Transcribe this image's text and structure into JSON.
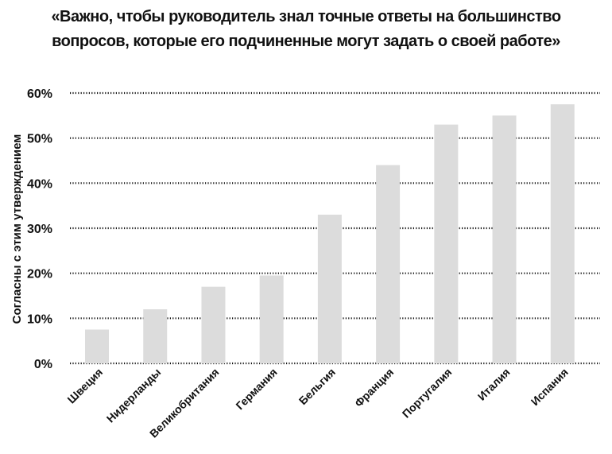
{
  "chart_data": {
    "type": "bar",
    "title_lines": [
      "«Важно, чтобы руководитель знал точные ответы на большинство",
      "вопросов, которые его подчиненные могут задать о своей работе»"
    ],
    "ylabel": "Согласны с этим утверждением",
    "xlabel": "",
    "categories": [
      "Швеция",
      "Нидерланды",
      "Великобритания",
      "Германия",
      "Бельгия",
      "Франция",
      "Португалия",
      "Италия",
      "Испания"
    ],
    "values": [
      7.5,
      12,
      17,
      19.5,
      33,
      44,
      53,
      55,
      57.5
    ],
    "ylim": [
      0,
      60
    ],
    "yticks": [
      0,
      10,
      20,
      30,
      40,
      50,
      60
    ],
    "ytick_labels": [
      "0%",
      "10%",
      "20%",
      "30%",
      "40%",
      "50%",
      "60%"
    ],
    "grid": true,
    "bar_color": "#dcdcdc",
    "grid_color": "#111111"
  }
}
